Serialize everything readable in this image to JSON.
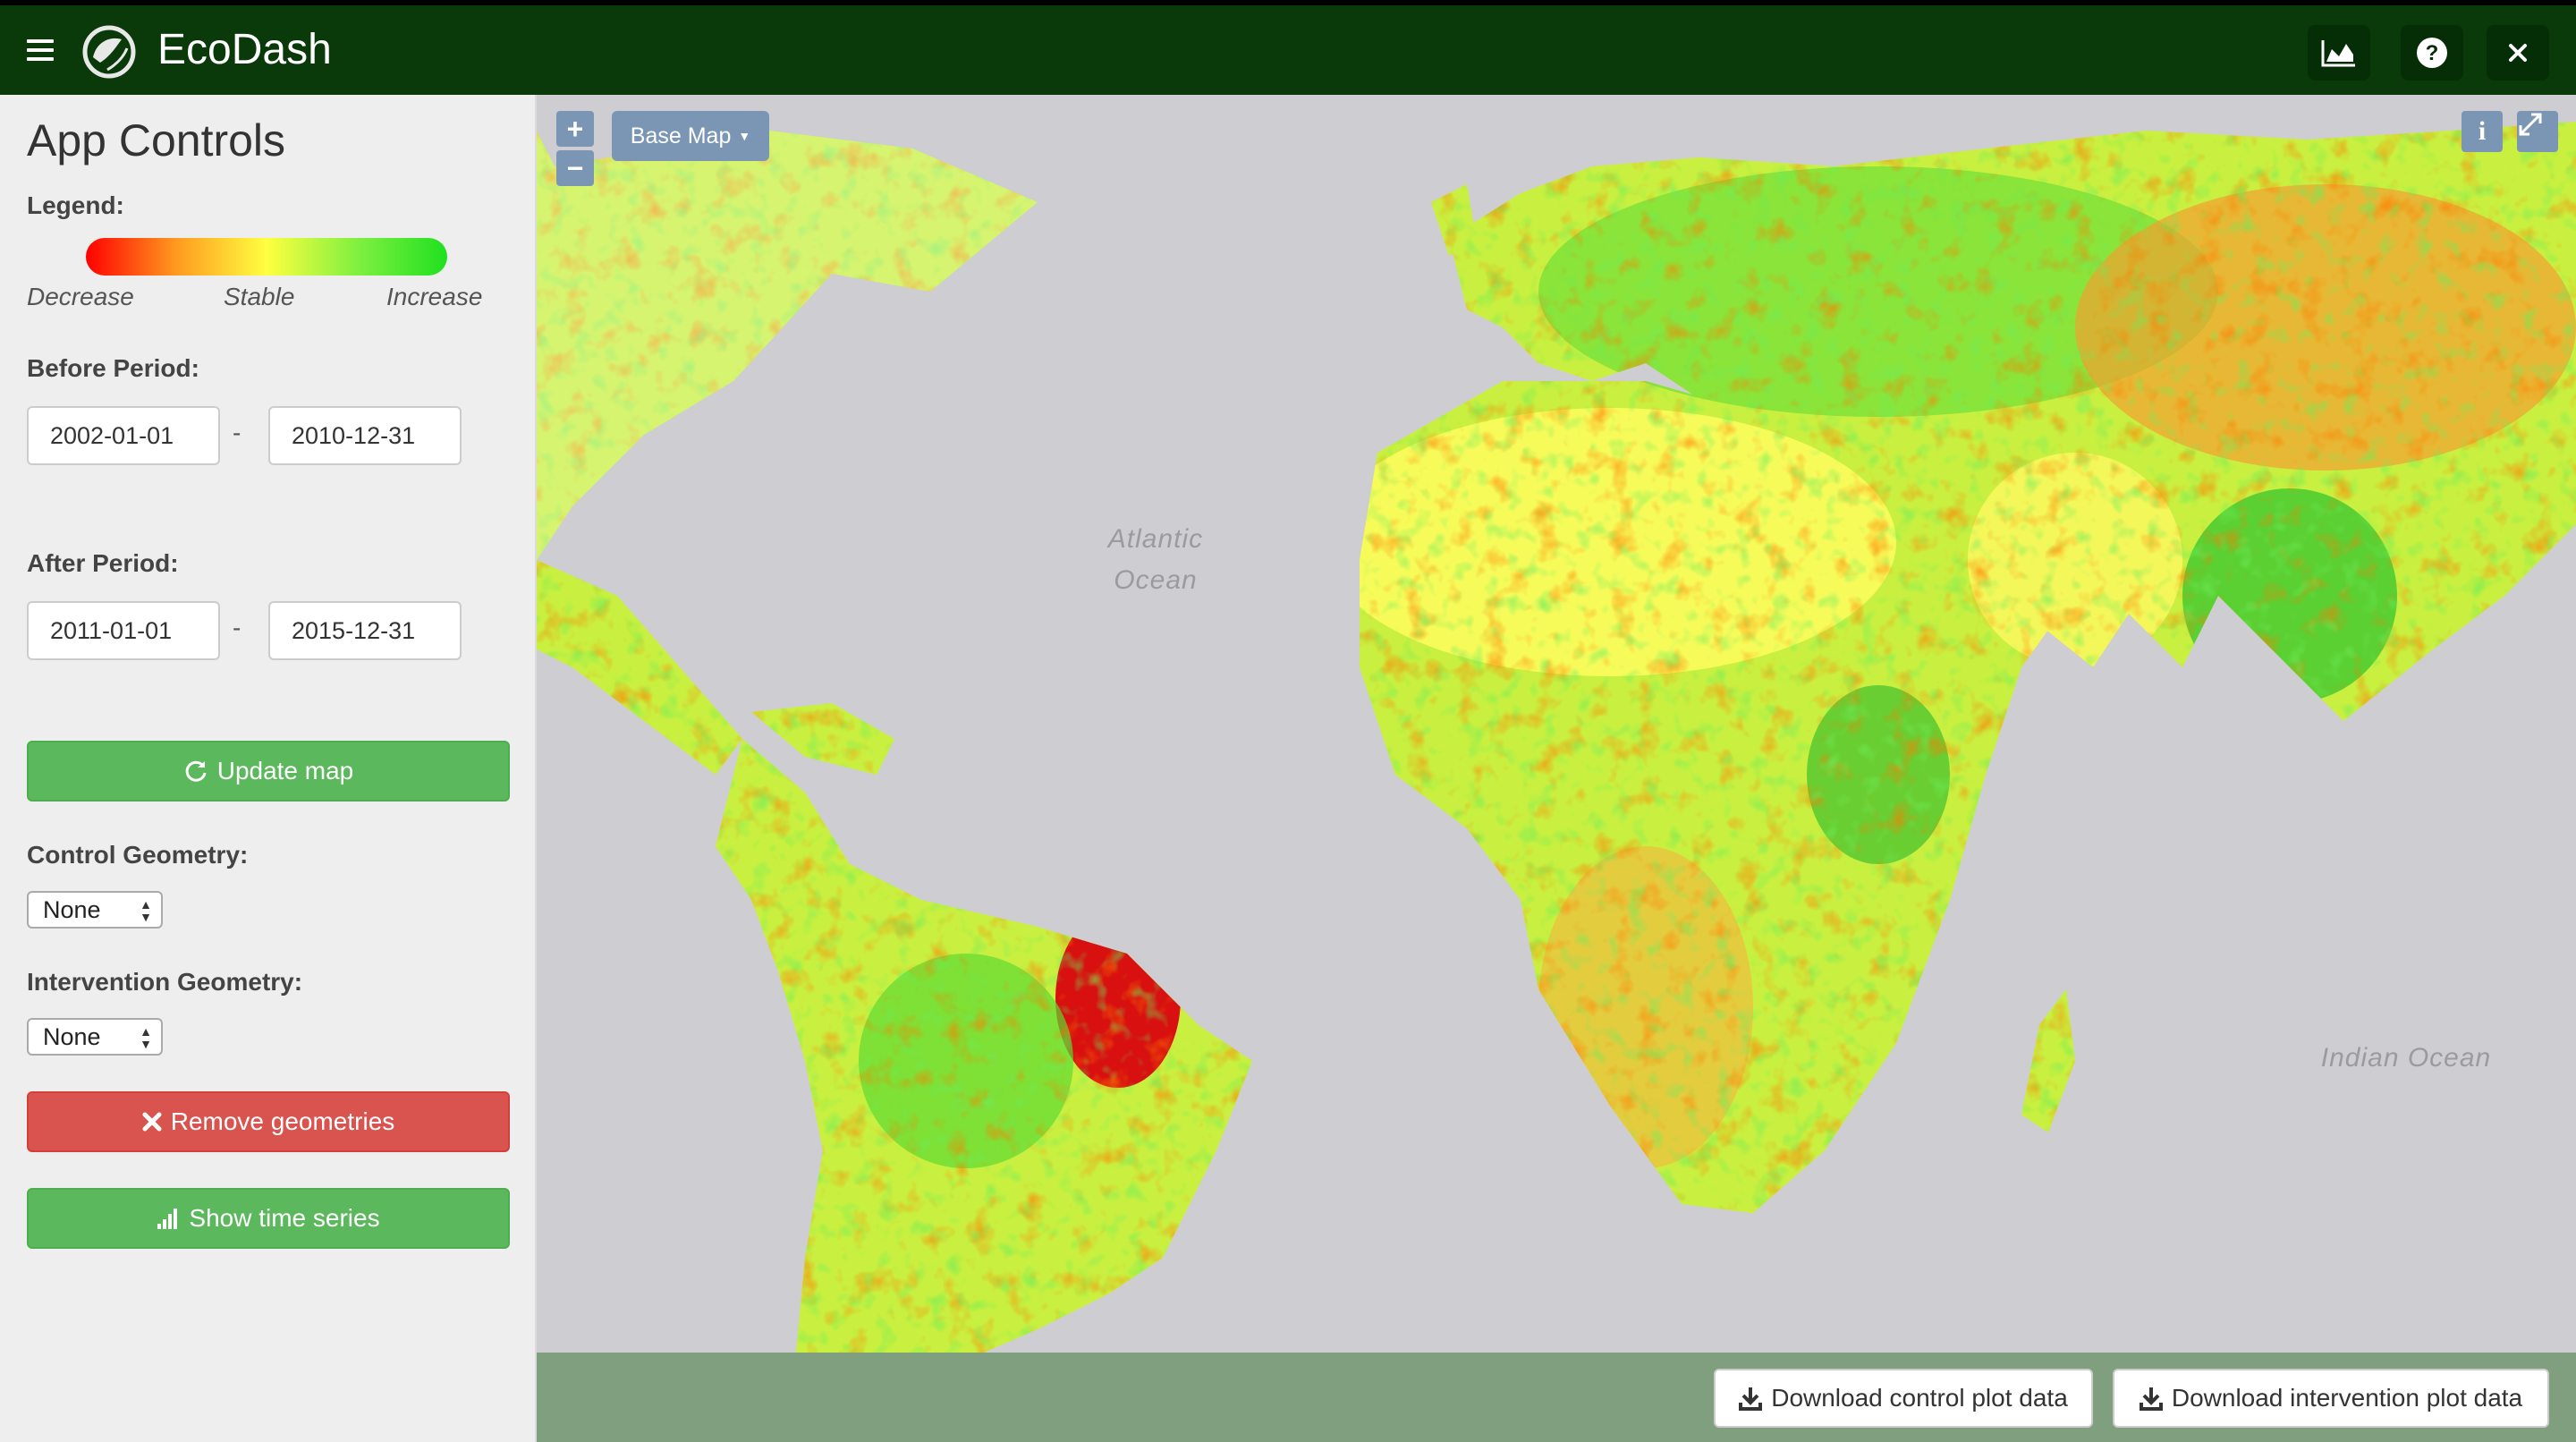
{
  "app": {
    "title": "EcoDash"
  },
  "header": {
    "buttons": [
      "chart-area-icon",
      "question-circle-icon",
      "close-icon"
    ]
  },
  "sidebar": {
    "title": "App Controls",
    "legend": {
      "label": "Legend:",
      "decrease": "Decrease",
      "stable": "Stable",
      "increase": "Increase",
      "colors": [
        "#ff0000",
        "#ff9a20",
        "#ffff40",
        "#80f040",
        "#20e020"
      ]
    },
    "before_period": {
      "label": "Before Period:",
      "start": "2002-01-01",
      "separator": "-",
      "end": "2010-12-31"
    },
    "after_period": {
      "label": "After Period:",
      "start": "2011-01-01",
      "separator": "-",
      "end": "2015-12-31"
    },
    "update_button": "Update map",
    "control_geometry": {
      "label": "Control Geometry:",
      "value": "None"
    },
    "intervention_geometry": {
      "label": "Intervention Geometry:",
      "value": "None"
    },
    "remove_button": "Remove geometries",
    "timeseries_button": "Show time series"
  },
  "map": {
    "zoom_in": "+",
    "zoom_out": "−",
    "base_map_label": "Base Map",
    "info_label": "i",
    "ocean_labels": {
      "atlantic_line1": "Atlantic",
      "atlantic_line2": "Ocean",
      "indian": "Indian Ocean"
    }
  },
  "footer": {
    "download_control": "Download control plot data",
    "download_intervention": "Download intervention plot data"
  },
  "colors": {
    "header_bg": "#0a3a0a",
    "sidebar_bg": "#eeeeee",
    "success": "#5cb85c",
    "danger": "#d9534f",
    "map_control": "#7b96b4",
    "footer_bg": "#7f9f7f"
  }
}
